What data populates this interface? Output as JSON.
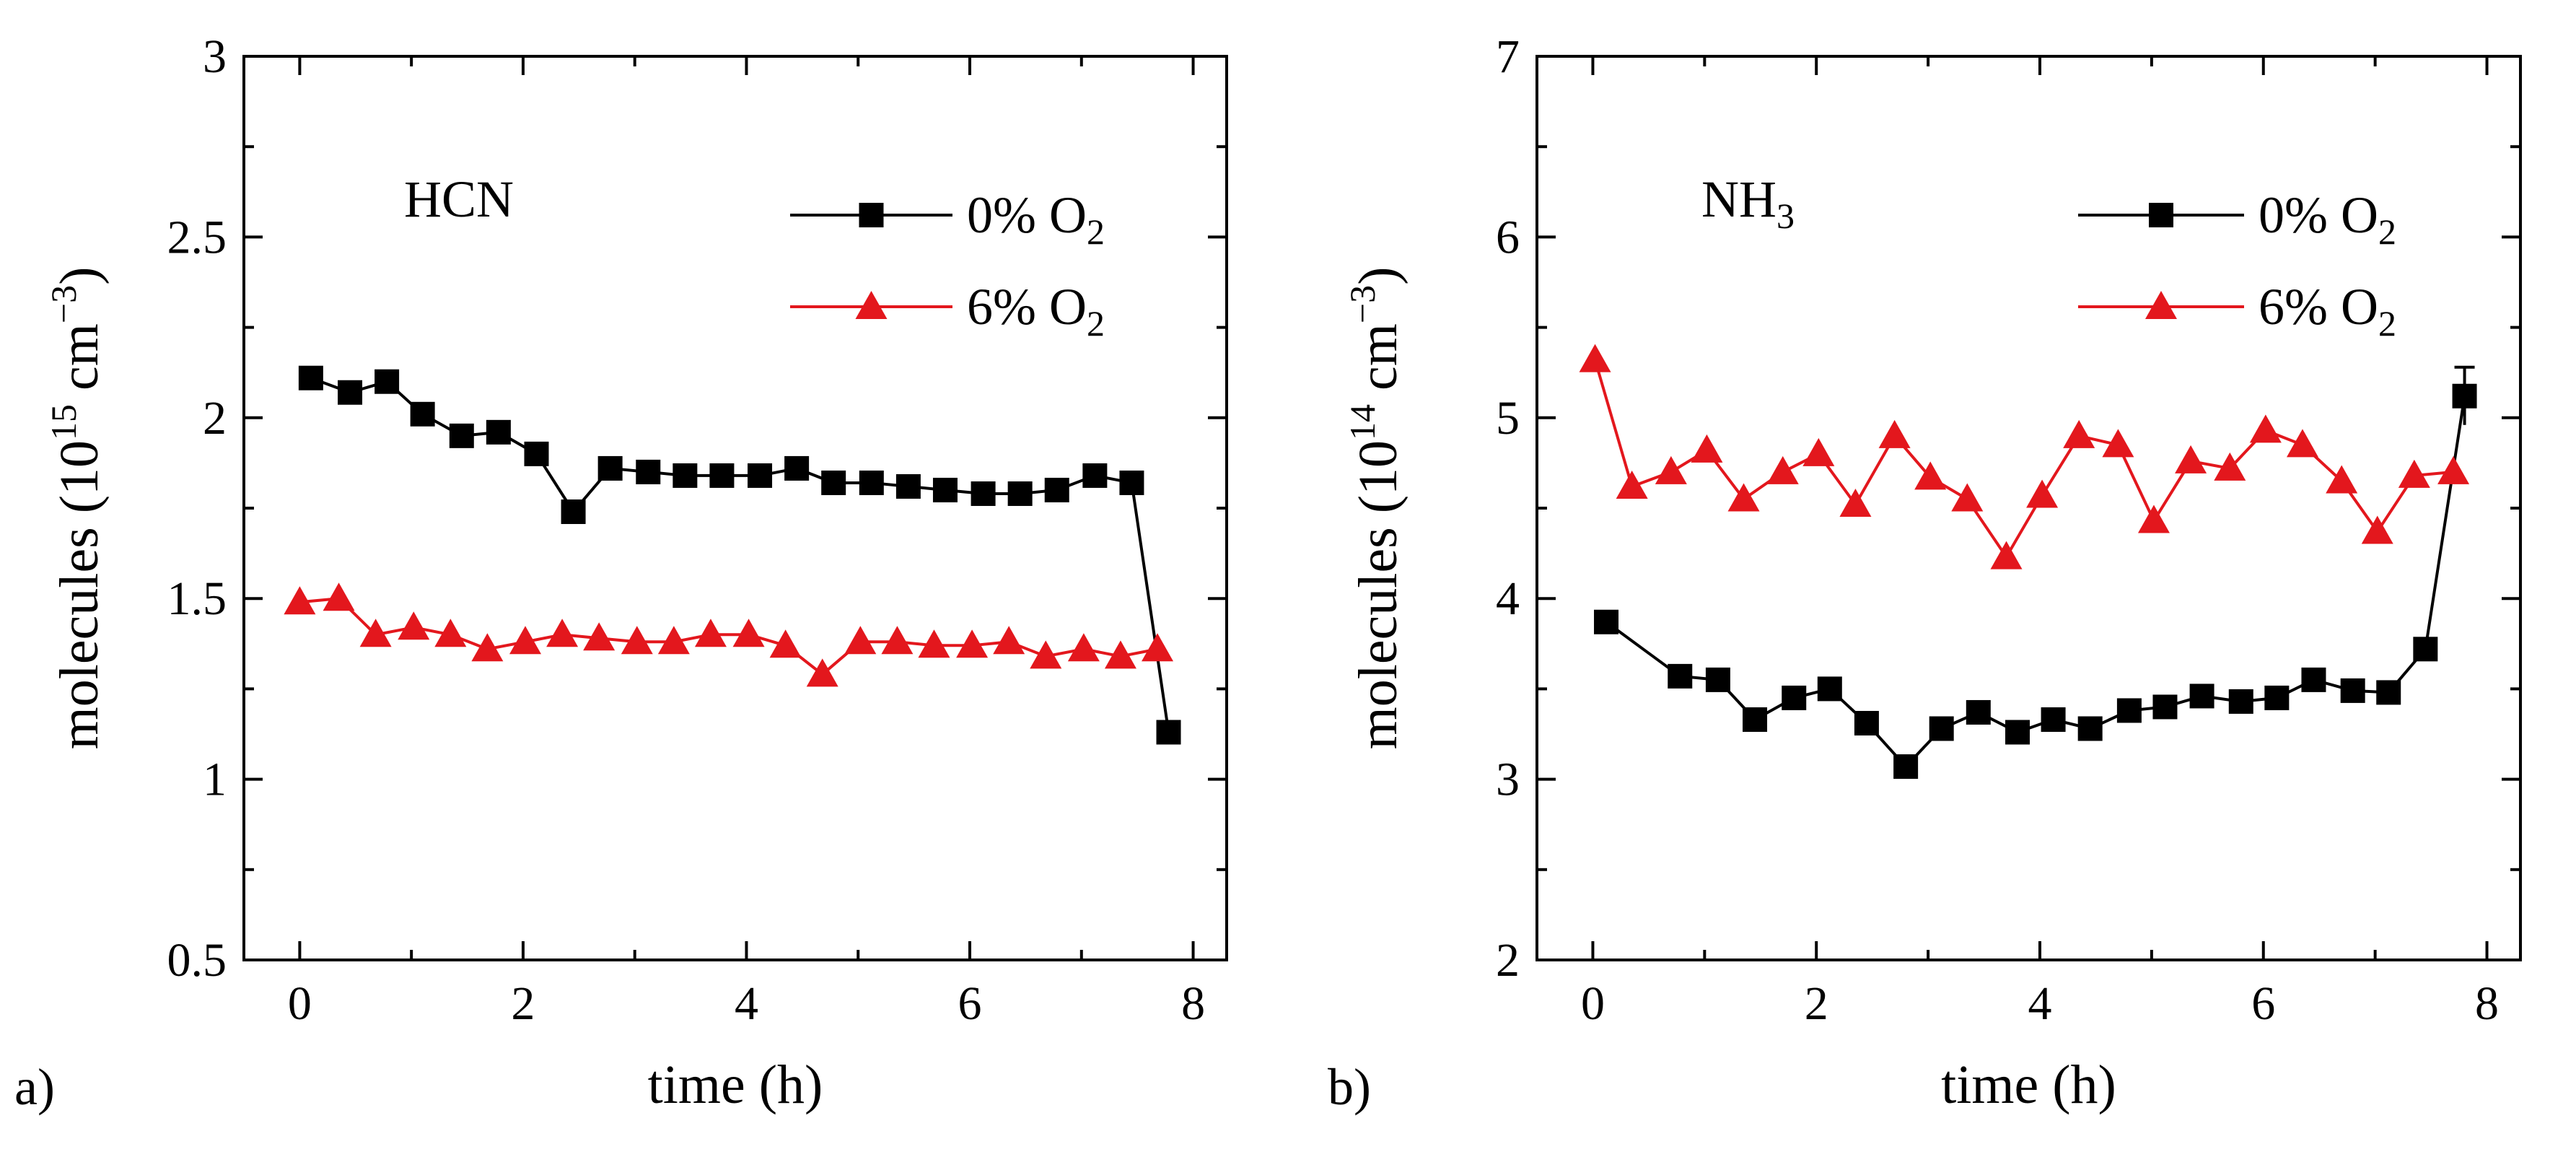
{
  "chart_data": [
    {
      "type": "line",
      "panel_label": "a)",
      "title": "HCN",
      "xlabel": "time (h)",
      "ylabel": "molecules (10",
      "ylabel_exponent": "15",
      "ylabel_unit": " cm",
      "ylabel_unit_exponent": "−3",
      "ylabel_close": ")",
      "xlim": [
        -0.5,
        8.3
      ],
      "ylim": [
        0.5,
        3.0
      ],
      "xticks": [
        0,
        2,
        4,
        6,
        8
      ],
      "xtick_labels": [
        "0",
        "2",
        "4",
        "6",
        "8"
      ],
      "yticks": [
        0.5,
        1.0,
        1.5,
        2.0,
        2.5,
        3.0
      ],
      "ytick_labels": [
        "0.5",
        "1",
        "1.5",
        "2",
        "2.5",
        "3"
      ],
      "legend_position": "top-right",
      "series": [
        {
          "name": "0% O2",
          "legend_text": "0% O",
          "legend_sub": "2",
          "color": "#000000",
          "marker": "square",
          "x": [
            0.1,
            0.45,
            0.78,
            1.1,
            1.45,
            1.78,
            2.12,
            2.45,
            2.78,
            3.12,
            3.45,
            3.78,
            4.12,
            4.45,
            4.78,
            5.12,
            5.45,
            5.78,
            6.12,
            6.45,
            6.78,
            7.12,
            7.45,
            7.78
          ],
          "y": [
            2.11,
            2.07,
            2.1,
            2.01,
            1.95,
            1.96,
            1.9,
            1.74,
            1.86,
            1.85,
            1.84,
            1.84,
            1.84,
            1.86,
            1.82,
            1.82,
            1.81,
            1.8,
            1.79,
            1.79,
            1.8,
            1.84,
            1.82,
            1.13
          ]
        },
        {
          "name": "6% O2",
          "legend_text": "6% O",
          "legend_sub": "2",
          "color": "#e3171d",
          "marker": "triangle",
          "x": [
            0.0,
            0.35,
            0.68,
            1.02,
            1.35,
            1.68,
            2.02,
            2.35,
            2.68,
            3.02,
            3.35,
            3.68,
            4.02,
            4.35,
            4.68,
            5.02,
            5.35,
            5.68,
            6.02,
            6.35,
            6.68,
            7.02,
            7.35,
            7.68
          ],
          "y": [
            1.49,
            1.5,
            1.4,
            1.42,
            1.4,
            1.36,
            1.38,
            1.4,
            1.39,
            1.38,
            1.38,
            1.4,
            1.4,
            1.37,
            1.29,
            1.38,
            1.38,
            1.37,
            1.37,
            1.38,
            1.34,
            1.36,
            1.34,
            1.36
          ]
        }
      ]
    },
    {
      "type": "line",
      "panel_label": "b)",
      "title": "NH",
      "title_sub": "3",
      "xlabel": "time (h)",
      "ylabel": "molecules (10",
      "ylabel_exponent": "14",
      "ylabel_unit": " cm",
      "ylabel_unit_exponent": "−3",
      "ylabel_close": ")",
      "xlim": [
        -0.5,
        8.3
      ],
      "ylim": [
        2.0,
        7.0
      ],
      "xticks": [
        0,
        2,
        4,
        6,
        8
      ],
      "xtick_labels": [
        "0",
        "2",
        "4",
        "6",
        "8"
      ],
      "yticks": [
        2,
        3,
        4,
        5,
        6,
        7
      ],
      "ytick_labels": [
        "2",
        "3",
        "4",
        "5",
        "6",
        "7"
      ],
      "legend_position": "top-right",
      "series": [
        {
          "name": "0% O2",
          "legend_text": "0% O",
          "legend_sub": "2",
          "color": "#000000",
          "marker": "square",
          "x": [
            0.12,
            0.78,
            1.12,
            1.45,
            1.8,
            2.12,
            2.45,
            2.8,
            3.12,
            3.45,
            3.8,
            4.12,
            4.45,
            4.8,
            5.12,
            5.45,
            5.8,
            6.12,
            6.45,
            6.8,
            7.12,
            7.45,
            7.8
          ],
          "y": [
            3.87,
            3.57,
            3.55,
            3.33,
            3.45,
            3.5,
            3.31,
            3.07,
            3.28,
            3.37,
            3.26,
            3.33,
            3.28,
            3.38,
            3.4,
            3.46,
            3.43,
            3.45,
            3.55,
            3.49,
            3.48,
            3.72,
            5.12
          ]
        },
        {
          "name": "6% O2",
          "legend_text": "6% O",
          "legend_sub": "2",
          "color": "#e3171d",
          "marker": "triangle",
          "x": [
            0.02,
            0.35,
            0.7,
            1.02,
            1.35,
            1.7,
            2.02,
            2.35,
            2.7,
            3.02,
            3.35,
            3.7,
            4.02,
            4.35,
            4.7,
            5.02,
            5.35,
            5.7,
            6.02,
            6.35,
            6.7,
            7.02,
            7.35,
            7.7
          ],
          "y": [
            5.32,
            4.62,
            4.7,
            4.82,
            4.55,
            4.7,
            4.8,
            4.52,
            4.9,
            4.67,
            4.55,
            4.23,
            4.57,
            4.9,
            4.85,
            4.43,
            4.76,
            4.72,
            4.93,
            4.85,
            4.65,
            4.37,
            4.68,
            4.7
          ]
        }
      ]
    }
  ]
}
